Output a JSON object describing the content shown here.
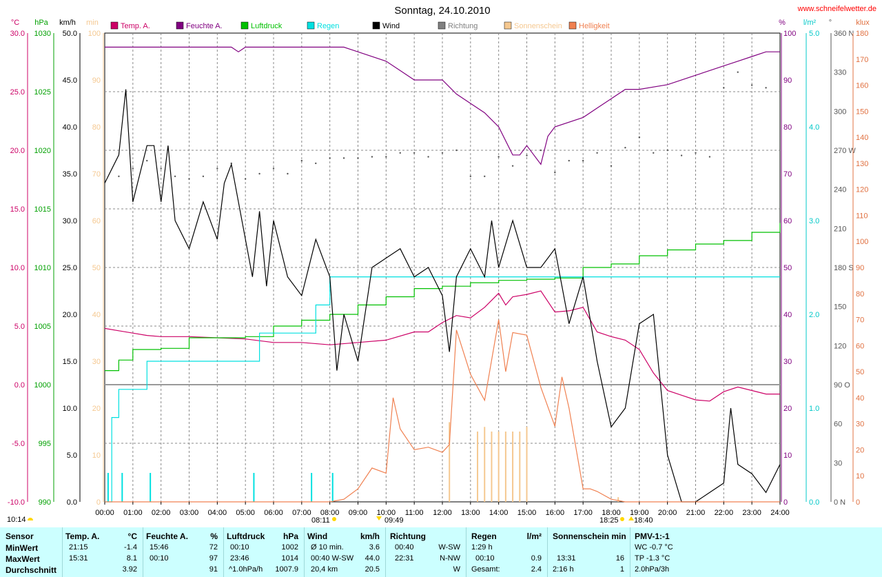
{
  "title": "Sonntag, 24.10.2010",
  "site": "www.schneifelwetter.de",
  "left_axes": [
    {
      "unit": "°C",
      "color": "#cc0066",
      "ticks": [
        "30.0",
        "25.0",
        "20.0",
        "15.0",
        "10.0",
        "5.0",
        "0.0",
        "-5.0",
        "-10.0"
      ]
    },
    {
      "unit": "hPa",
      "color": "#00a000",
      "ticks": [
        "1030",
        "1025",
        "1020",
        "1015",
        "1010",
        "1005",
        "1000",
        "995",
        "990"
      ]
    },
    {
      "unit": "km/h",
      "color": "#000000",
      "ticks": [
        "50.0",
        "45.0",
        "40.0",
        "35.0",
        "30.0",
        "25.0",
        "20.0",
        "15.0",
        "10.0",
        "5.0",
        "0.0"
      ]
    },
    {
      "unit": "min",
      "color": "#f5c890",
      "ticks": [
        "100",
        "90",
        "80",
        "70",
        "60",
        "50",
        "40",
        "30",
        "20",
        "10",
        "0"
      ]
    }
  ],
  "right_axes": [
    {
      "unit": "%",
      "color": "#800080",
      "ticks": [
        "100",
        "90",
        "80",
        "70",
        "60",
        "50",
        "40",
        "30",
        "20",
        "10",
        "0"
      ]
    },
    {
      "unit": "l/m²",
      "color": "#00c8c8",
      "ticks": [
        "5.0",
        "4.0",
        "3.0",
        "2.0",
        "1.0",
        "0.0"
      ]
    },
    {
      "unit": "°",
      "color": "#555555",
      "ticks": [
        "360 N",
        "330",
        "300",
        "270 W",
        "240",
        "210",
        "180 S",
        "150",
        "120",
        "90 O",
        "60",
        "30",
        "0 N"
      ]
    },
    {
      "unit": "klux",
      "color": "#e07040",
      "ticks": [
        "180",
        "170",
        "160",
        "150",
        "140",
        "130",
        "120",
        "110",
        "100",
        "90",
        "80",
        "70",
        "60",
        "50",
        "40",
        "30",
        "20",
        "10",
        "0"
      ]
    }
  ],
  "legend": [
    {
      "label": "Temp. A.",
      "color": "#cc0066"
    },
    {
      "label": "Feuchte A.",
      "color": "#800080"
    },
    {
      "label": "Luftdruck",
      "color": "#00c000"
    },
    {
      "label": "Regen",
      "color": "#00e0e0"
    },
    {
      "label": "Wind",
      "color": "#000000"
    },
    {
      "label": "Richtung",
      "color": "#808080"
    },
    {
      "label": "Sonnenschein",
      "color": "#f5c890"
    },
    {
      "label": "Helligkeit",
      "color": "#f08050"
    }
  ],
  "x_ticks": [
    "00:00",
    "01:00",
    "02:00",
    "03:00",
    "04:00",
    "05:00",
    "06:00",
    "07:00",
    "08:00",
    "09:00",
    "10:00",
    "11:00",
    "12:00",
    "13:00",
    "14:00",
    "15:00",
    "16:00",
    "17:00",
    "18:00",
    "19:00",
    "20:00",
    "21:00",
    "22:00",
    "23:00",
    "24:00"
  ],
  "annotations": {
    "moonrise": "10:14",
    "sunrise": "08:11",
    "noon": "09:49",
    "sunset": "18:25",
    "moonset": "18:40"
  },
  "chart_data": {
    "type": "line",
    "x_unit": "hour of day",
    "xlim": [
      0,
      24
    ],
    "series": [
      {
        "name": "Temp. A.",
        "unit": "°C",
        "ylim": [
          -10,
          30
        ],
        "x": [
          0,
          0.5,
          1,
          1.5,
          2,
          2.5,
          3,
          4,
          5,
          6,
          7,
          8,
          9,
          10,
          11,
          11.5,
          12,
          12.5,
          13,
          13.5,
          14,
          14.25,
          14.5,
          15,
          15.5,
          16,
          16.5,
          17,
          17.5,
          18,
          18.5,
          19,
          19.5,
          20,
          20.5,
          21,
          21.5,
          22,
          22.5,
          23,
          23.5,
          24
        ],
        "y": [
          4.8,
          4.6,
          4.4,
          4.2,
          4.1,
          4.1,
          4.1,
          4.0,
          3.9,
          3.6,
          3.6,
          3.4,
          3.6,
          3.8,
          4.5,
          4.5,
          5.3,
          5.9,
          5.7,
          6.6,
          7.8,
          6.8,
          7.5,
          7.7,
          8.0,
          6.2,
          6.3,
          6.6,
          4.5,
          4.1,
          3.8,
          3.0,
          1.0,
          -0.5,
          -0.9,
          -1.3,
          -1.4,
          -0.6,
          -0.2,
          -0.5,
          -0.8,
          -0.8
        ]
      },
      {
        "name": "Feuchte A.",
        "unit": "%",
        "ylim": [
          0,
          100
        ],
        "x": [
          0,
          4.5,
          4.75,
          5,
          8.5,
          9,
          10,
          10.5,
          11,
          12,
          12.5,
          13,
          13.5,
          14,
          14.5,
          14.75,
          15,
          15.5,
          15.75,
          16,
          17,
          17.5,
          18,
          18.5,
          19,
          20,
          21,
          22,
          22.5,
          23,
          23.5,
          24
        ],
        "y": [
          97,
          97,
          96,
          97,
          97,
          96,
          94,
          92,
          90,
          90,
          87,
          85,
          83,
          80,
          74,
          74,
          76,
          72,
          78,
          80,
          82,
          84,
          86,
          88,
          88,
          89,
          91,
          93,
          94,
          95,
          96,
          96
        ]
      },
      {
        "name": "Luftdruck",
        "unit": "hPa",
        "ylim": [
          990,
          1030
        ],
        "x": [
          0,
          0.5,
          1,
          2,
          3,
          5,
          6,
          7,
          8,
          9,
          10,
          11,
          12,
          13,
          14,
          15,
          16,
          17,
          18,
          19,
          20,
          21,
          22,
          23,
          24
        ],
        "y": [
          1001.2,
          1002.1,
          1003.0,
          1003.1,
          1004.0,
          1004.1,
          1005.0,
          1005.5,
          1006.0,
          1006.8,
          1007.5,
          1008.2,
          1008.4,
          1008.7,
          1008.9,
          1009.0,
          1009.1,
          1010.0,
          1010.3,
          1011.0,
          1011.5,
          1012.0,
          1012.3,
          1013.0,
          1013.8
        ]
      },
      {
        "name": "Regen",
        "unit": "l/m²",
        "ylim": [
          0,
          5
        ],
        "x": [
          0,
          0.25,
          0.5,
          1,
          1.5,
          2,
          3,
          4,
          5,
          5.5,
          6,
          7,
          7.5,
          8,
          9,
          10,
          11,
          12,
          13,
          14,
          15,
          16,
          17,
          18,
          24
        ],
        "y": [
          0,
          0.9,
          1.2,
          1.2,
          1.5,
          1.5,
          1.5,
          1.5,
          1.5,
          1.8,
          1.8,
          1.8,
          2.1,
          2.4,
          2.4,
          2.4,
          2.4,
          2.4,
          2.4,
          2.4,
          2.4,
          2.4,
          2.4,
          2.4,
          2.4
        ]
      },
      {
        "name": "Wind",
        "unit": "km/h",
        "ylim": [
          0,
          50
        ],
        "x": [
          0,
          0.5,
          0.75,
          1,
          1.5,
          1.75,
          2,
          2.25,
          2.5,
          3,
          3.5,
          4,
          4.25,
          4.5,
          5,
          5.25,
          5.5,
          5.75,
          6,
          6.5,
          7,
          7.5,
          8,
          8.25,
          8.5,
          9,
          9.5,
          10,
          10.5,
          11,
          11.5,
          12,
          12.25,
          12.5,
          13,
          13.5,
          13.75,
          14,
          14.5,
          15,
          15.5,
          16,
          16.5,
          17,
          17.5,
          18,
          18.25,
          18.5,
          19,
          19.5,
          20,
          20.5,
          21,
          21.5,
          22,
          22.25,
          22.5,
          23,
          23.5,
          24
        ],
        "y": [
          34,
          37,
          44,
          32,
          38,
          38,
          32,
          38,
          30,
          27,
          32,
          28,
          34,
          36,
          28,
          24,
          31,
          23,
          30,
          24,
          22,
          28,
          24,
          14,
          20,
          15,
          25,
          26,
          27,
          24,
          25,
          22,
          16,
          24,
          27,
          24,
          30,
          25,
          30,
          25,
          25,
          27,
          19,
          24,
          15,
          8,
          9,
          10,
          19,
          20,
          5,
          0,
          0,
          1,
          2,
          10,
          4,
          3,
          1,
          4
        ]
      },
      {
        "name": "Helligkeit",
        "unit": "klux",
        "ylim": [
          0,
          180
        ],
        "x": [
          0,
          8,
          8.5,
          9,
          9.5,
          10,
          10.25,
          10.5,
          11,
          11.5,
          12,
          12.25,
          12.5,
          13,
          13.5,
          14,
          14.25,
          14.5,
          15,
          15.5,
          16,
          16.25,
          16.5,
          17,
          17.25,
          17.5,
          18,
          18.5,
          19,
          24
        ],
        "y": [
          0,
          0,
          1,
          5,
          13,
          11,
          40,
          28,
          20,
          21,
          19,
          22,
          66,
          49,
          39,
          70,
          50,
          65,
          64,
          44,
          29,
          48,
          36,
          5,
          5,
          4,
          1,
          0,
          0,
          0
        ]
      },
      {
        "name": "Sonnenschein",
        "unit": "min",
        "ylim": [
          0,
          100
        ],
        "x": [
          12.25,
          13.25,
          13.5,
          13.75,
          14,
          14.25,
          14.5,
          14.75,
          15,
          18.25
        ],
        "y": [
          17,
          15,
          16,
          15,
          15,
          15,
          15,
          15,
          16,
          1
        ]
      }
    ],
    "richtung": {
      "name": "Richtung",
      "unit": "°",
      "ylim": [
        0,
        360
      ],
      "x": [
        0.5,
        1,
        1.5,
        2,
        2.5,
        3,
        3.5,
        4,
        4.5,
        5,
        5.5,
        6,
        6.5,
        7,
        7.5,
        8,
        8.5,
        9,
        9.5,
        10,
        10.5,
        11,
        11.5,
        12,
        12.5,
        13,
        13.5,
        14,
        14.5,
        15,
        15.5,
        16,
        16.5,
        17,
        17.5,
        18,
        18.5,
        19,
        19.5,
        20,
        20.5,
        21,
        21.5,
        22,
        22.5,
        23,
        23.5
      ],
      "y": [
        250,
        256,
        262,
        256,
        250,
        248,
        250,
        256,
        260,
        248,
        252,
        256,
        252,
        262,
        260,
        264,
        264,
        264,
        265,
        265,
        268,
        268,
        265,
        268,
        270,
        250,
        250,
        265,
        258,
        266,
        270,
        253,
        262,
        262,
        268,
        258,
        272,
        280,
        268,
        270,
        266,
        268,
        265,
        318,
        330,
        320,
        318
      ]
    }
  },
  "table": {
    "headers": {
      "sensor": "Sensor",
      "temp": "Temp. A.",
      "temp_unit": "°C",
      "hum": "Feuchte A.",
      "hum_unit": "%",
      "press": "Luftdruck",
      "press_unit": "hPa",
      "wind": "Wind",
      "wind_unit": "km/h",
      "dir": "Richtung",
      "rain": "Regen",
      "rain_unit": "l/m²",
      "sun": "Sonnenschein min",
      "pmv": "PMV-1:-1"
    },
    "rows": [
      {
        "label": "MinWert",
        "temp_t": "21:15",
        "temp_v": "-1.4",
        "hum_t": "15:46",
        "hum_v": "72",
        "press_t": "00:10",
        "press_v": "1002",
        "wind_t": "Ø 10 min.",
        "wind_v": "3.6",
        "dir_t": "00:40",
        "dir_v": "W-SW",
        "rain_t": "1:29 h",
        "rain_v": "",
        "sun_t": "",
        "sun_v": "",
        "pmv": "WC -0.7 °C"
      },
      {
        "label": "MaxWert",
        "temp_t": "15:31",
        "temp_v": "8.1",
        "hum_t": "00:10",
        "hum_v": "97",
        "press_t": "23:46",
        "press_v": "1014",
        "wind_t": "00:40  W-SW",
        "wind_v": "44.0",
        "dir_t": "22:31",
        "dir_v": "N-NW",
        "rain_t": "00:10",
        "rain_v": "0.9",
        "sun_t": "13:31",
        "sun_v": "16",
        "pmv": "TP -1.3 °C"
      },
      {
        "label": "Durchschnitt",
        "temp_t": "",
        "temp_v": "3.92",
        "hum_t": "",
        "hum_v": "91",
        "press_t": "^1.0hPa/h",
        "press_v": "1007.9",
        "wind_t": "20,4 km",
        "wind_v": "20.5",
        "dir_t": "",
        "dir_v": "W",
        "rain_t": "Gesamt:",
        "rain_v": "2.4",
        "sun_t": "2:16 h",
        "sun_v": "1",
        "pmv": "2.0hPa/3h"
      }
    ]
  }
}
